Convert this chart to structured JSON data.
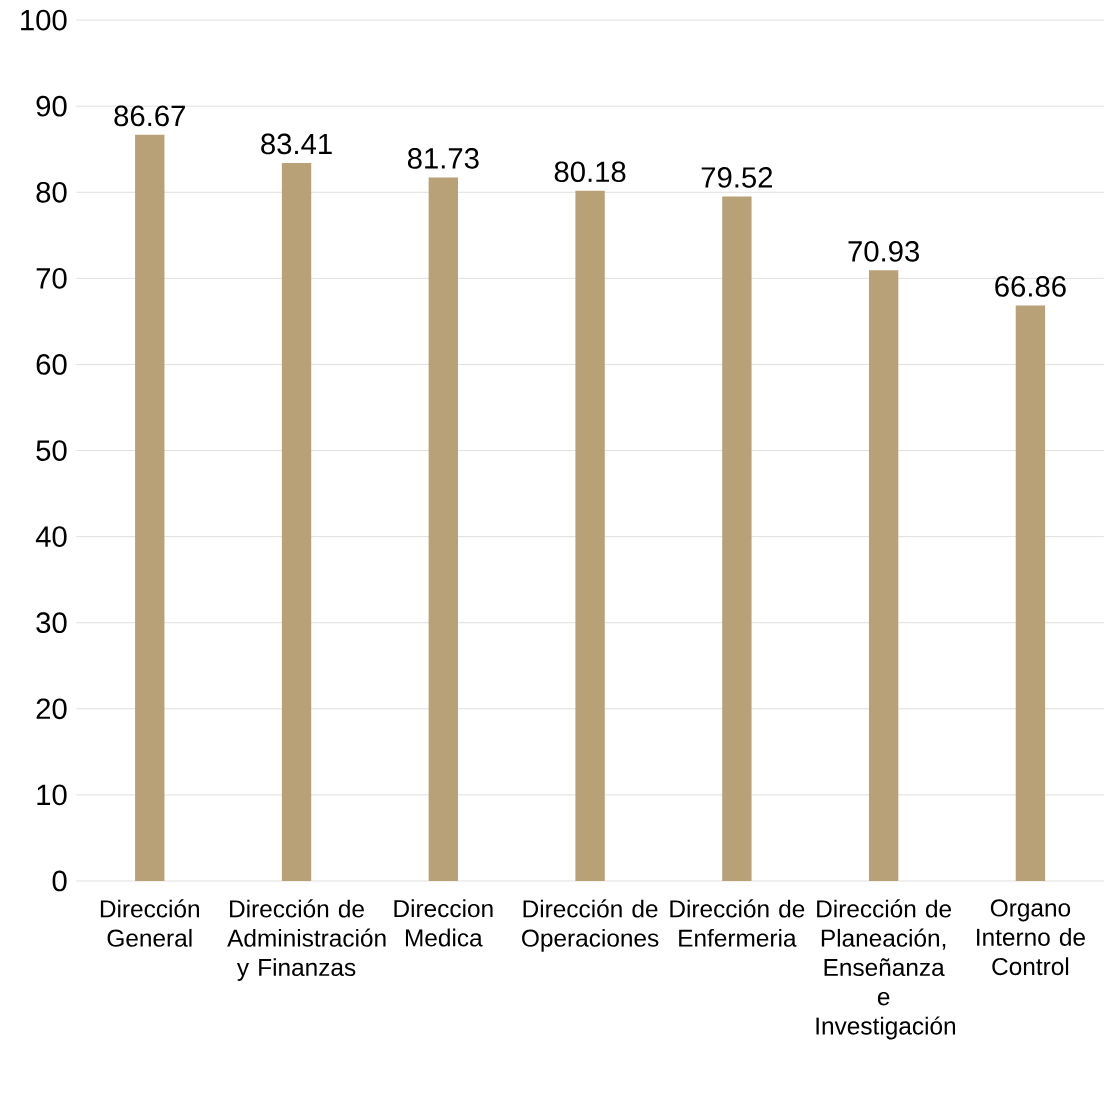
{
  "chart_data": {
    "type": "bar",
    "categories": [
      "Dirección General",
      "Dirección de Administración y Finanzas",
      "Direccion Medica",
      "Dirección de Operaciones",
      "Dirección de Enfermeria",
      "Dirección de Planeación, Enseñanza e Investigación",
      "Organo Interno de Control"
    ],
    "values": [
      86.67,
      83.41,
      81.73,
      80.18,
      79.52,
      70.93,
      66.86
    ],
    "color": "#b8a077",
    "ylim": [
      0,
      100
    ],
    "yticks": [
      0,
      10,
      20,
      30,
      40,
      50,
      60,
      70,
      80,
      90,
      100
    ],
    "grid": "y",
    "data_labels": true
  }
}
